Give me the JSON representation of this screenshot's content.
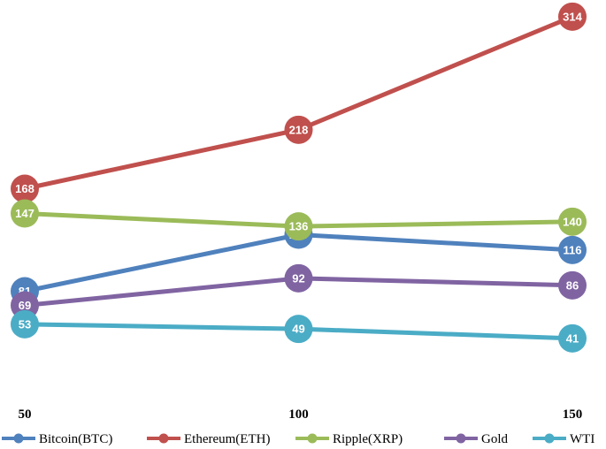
{
  "chart_data": {
    "type": "line",
    "title": "",
    "xlabel": "",
    "ylabel": "",
    "x": [
      50,
      100,
      150
    ],
    "x_tick_labels": [
      "50",
      "100",
      "150"
    ],
    "ylim": [
      0,
      330
    ],
    "grid": false,
    "legend_position": "bottom",
    "series": [
      {
        "name": "Bitcoin(BTC)",
        "color": "#4F81BD",
        "values": [
          81,
          129,
          116
        ]
      },
      {
        "name": "Ethereum(ETH)",
        "color": "#C0504D",
        "values": [
          168,
          218,
          314
        ]
      },
      {
        "name": "Ripple(XRP)",
        "color": "#9BBB59",
        "values": [
          147,
          136,
          140
        ]
      },
      {
        "name": "Gold",
        "color": "#8064A2",
        "values": [
          69,
          92,
          86
        ]
      },
      {
        "name": "WTI",
        "color": "#4BACC6",
        "values": [
          53,
          49,
          41
        ]
      }
    ]
  }
}
